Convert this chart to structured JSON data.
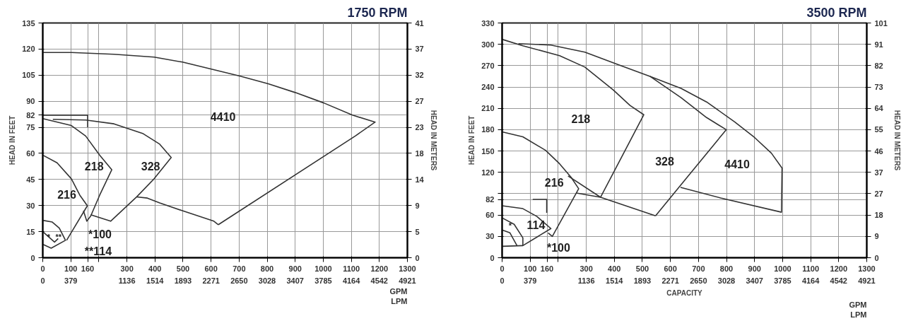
{
  "chart_data": [
    {
      "type": "line",
      "title": "1750 RPM",
      "ylabel": "HEAD IN FEET",
      "y2label": "HEAD IN METERS",
      "marker": "none",
      "line_style": "solid",
      "grid": true,
      "xlim": [
        0,
        1300
      ],
      "ylim": [
        0,
        135
      ],
      "y2lim": [
        0,
        41.148
      ],
      "x2lim": [
        0,
        4921
      ],
      "xticks": [
        0,
        100,
        160,
        {
          "value": 200,
          "label": null
        },
        300,
        400,
        500,
        600,
        700,
        800,
        900,
        1000,
        1100,
        1200,
        1300
      ],
      "x2ticks": [
        0,
        379,
        1136,
        1514,
        1893,
        2271,
        2650,
        3028,
        3407,
        3785,
        4164,
        4542,
        4921
      ],
      "yticks": [
        0,
        15,
        30,
        45,
        60,
        75,
        82,
        90,
        105,
        120,
        135
      ],
      "y2ticks": [
        0,
        {
          "value": 4.572,
          "label": "5"
        },
        {
          "value": 9.144,
          "label": "9"
        },
        {
          "value": 13.716,
          "label": "14"
        },
        {
          "value": 18.288,
          "label": "18"
        },
        {
          "value": 22.86,
          "label": "23"
        },
        {
          "value": 27.432,
          "label": "27"
        },
        {
          "value": 32.004,
          "label": "32"
        },
        {
          "value": 36.576,
          "label": "37"
        },
        {
          "value": 41.148,
          "label": "41"
        }
      ],
      "series": [
        {
          "color": "#333333",
          "x": [
            0,
            102,
            254,
            397,
            498,
            702,
            804,
            900,
            1002,
            1104,
            1185,
            1114,
            626
          ],
          "values": [
            118,
            118,
            117,
            115.4,
            112.5,
            104.5,
            100,
            95,
            89,
            82,
            78,
            70,
            19
          ]
        },
        {
          "color": "#333333",
          "x": [
            335,
            373,
            417,
            498,
            610,
            626
          ],
          "values": [
            35,
            34.3,
            31.5,
            27,
            21,
            19
          ]
        },
        {
          "color": "#333333",
          "x": [
            36,
            153,
            254,
            356,
            417,
            458,
            397,
            335,
            242,
            171
          ],
          "values": [
            79.6,
            79.2,
            77,
            71.5,
            65.3,
            57.6,
            45.4,
            35,
            21,
            24.7
          ]
        },
        {
          "color": "#333333",
          "x": [
            0,
            102,
            153,
            203,
            246,
            203,
            171,
            157,
            145
          ],
          "values": [
            80,
            76,
            70,
            59,
            50.6,
            36,
            24,
            21,
            27
          ]
        },
        {
          "color": "#333333",
          "x": [
            0,
            51,
            102,
            132,
            159,
            85
          ],
          "values": [
            59,
            54.6,
            45.4,
            36,
            29.9,
            10
          ]
        },
        {
          "color": "#333333",
          "x": [
            0,
            34,
            59,
            81,
            30,
            0
          ],
          "values": [
            21.5,
            20.5,
            17,
            10,
            5.5,
            7.7
          ]
        },
        {
          "color": "#333333",
          "x": [
            0,
            42,
            55
          ],
          "values": [
            15,
            9,
            11
          ]
        },
        {
          "color": "#333333",
          "x": [
            0,
            160,
            160
          ],
          "values": [
            82,
            82,
            75
          ]
        }
      ],
      "annotations": [
        "4410",
        "328",
        "218",
        "216",
        "*100",
        "**114",
        "*",
        "**",
        "GPM",
        "LPM"
      ]
    },
    {
      "type": "line",
      "title": "3500 RPM",
      "xlabel": "CAPACITY",
      "ylabel": "HEAD IN FEET",
      "y2label": "HEAD IN METERS",
      "marker": "none",
      "line_style": "solid",
      "grid": true,
      "xlim": [
        0,
        1300
      ],
      "ylim": [
        0,
        330
      ],
      "y2lim": [
        0,
        100.584
      ],
      "x2lim": [
        0,
        4921
      ],
      "xticks": [
        0,
        100,
        160,
        {
          "value": 200,
          "label": null
        },
        300,
        400,
        500,
        600,
        700,
        800,
        900,
        1000,
        1100,
        1200,
        1300
      ],
      "x2ticks": [
        0,
        379,
        1136,
        1514,
        1893,
        2271,
        2650,
        3028,
        3407,
        3785,
        4164,
        4542,
        4921
      ],
      "yticks": [
        0,
        30,
        60,
        82,
        {
          "value": 90,
          "label": null
        },
        120,
        150,
        180,
        210,
        240,
        270,
        300,
        330
      ],
      "y2ticks": [
        0,
        {
          "value": 9.144,
          "label": "9"
        },
        {
          "value": 18.288,
          "label": "18"
        },
        {
          "value": 27.432,
          "label": "27"
        },
        {
          "value": 36.576,
          "label": "37"
        },
        {
          "value": 45.72,
          "label": "46"
        },
        {
          "value": 54.864,
          "label": "55"
        },
        {
          "value": 64.008,
          "label": "64"
        },
        {
          "value": 73.152,
          "label": "73"
        },
        {
          "value": 82.296,
          "label": "82"
        },
        {
          "value": 91.44,
          "label": "91"
        },
        {
          "value": 100.584,
          "label": "101"
        }
      ],
      "series": [
        {
          "color": "#333333",
          "x": [
            0,
            74,
            205,
            295,
            396,
            456,
            505,
            351
          ],
          "values": [
            307,
            298,
            284,
            268,
            236,
            214,
            201,
            85
          ]
        },
        {
          "color": "#333333",
          "x": [
            58,
            174,
            295,
            416,
            527,
            638,
            729,
            799,
            547
          ],
          "values": [
            301,
            299,
            289,
            271,
            255,
            225,
            197,
            180,
            59
          ]
        },
        {
          "color": "#333333",
          "x": [
            527,
            638,
            729,
            829,
            900,
            960,
            998,
            996,
            779,
            636
          ],
          "values": [
            255,
            238,
            219,
            191,
            169,
            147,
            126,
            64,
            84,
            99
          ]
        },
        {
          "color": "#333333",
          "x": [
            0,
            74,
            155,
            205,
            246,
            273,
            179,
            164
          ],
          "values": [
            177,
            170,
            151,
            132,
            113,
            97,
            30,
            35
          ]
        },
        {
          "color": "#333333",
          "x": [
            235,
            351
          ],
          "values": [
            115,
            85
          ]
        },
        {
          "color": "#333333",
          "x": [
            265,
            351,
            547
          ],
          "values": [
            91,
            85,
            59
          ]
        },
        {
          "color": "#333333",
          "x": [
            0,
            74,
            124,
            174,
            74,
            0
          ],
          "values": [
            73,
            69,
            58,
            41,
            17,
            16
          ]
        },
        {
          "color": "#333333",
          "x": [
            0,
            43,
            74,
            74
          ],
          "values": [
            56,
            47,
            28,
            17
          ]
        },
        {
          "color": "#333333",
          "x": [
            0,
            28,
            53
          ],
          "values": [
            39,
            35,
            17
          ]
        },
        {
          "color": "#333333",
          "x": [
            109,
            159,
            159
          ],
          "values": [
            82,
            82,
            63
          ]
        }
      ],
      "annotations": [
        "218",
        "216",
        "328",
        "4410",
        "114",
        "*",
        "*100",
        "GPM",
        "LPM"
      ]
    }
  ]
}
